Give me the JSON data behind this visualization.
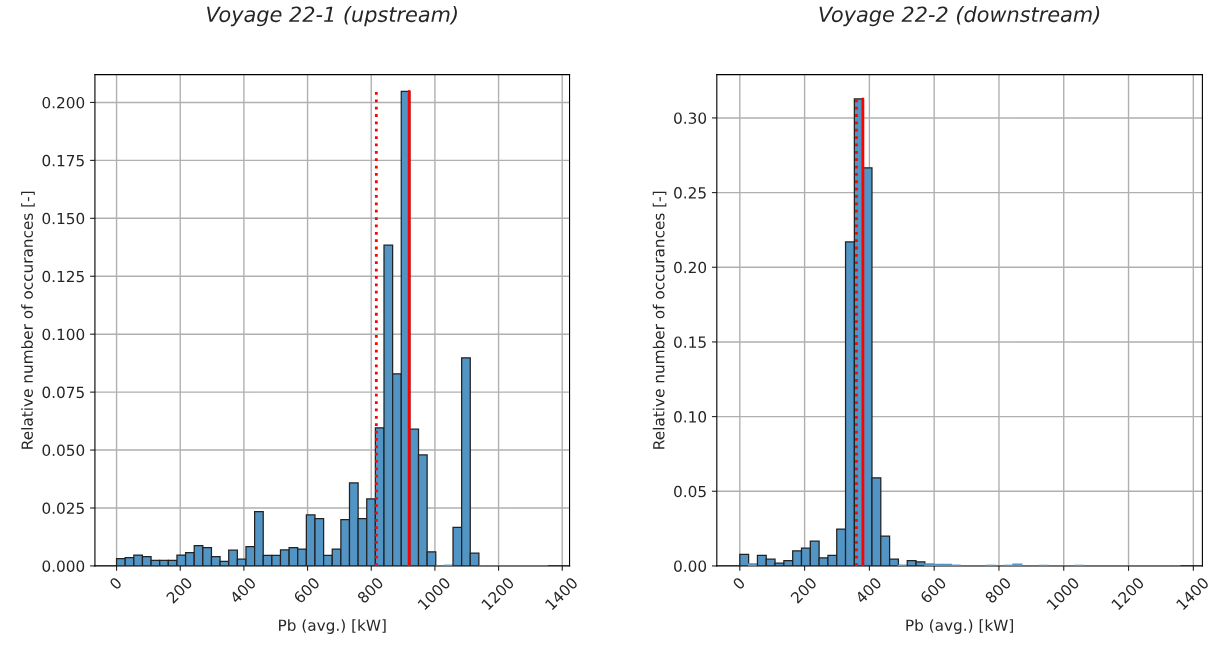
{
  "chart_data": [
    {
      "type": "histogram",
      "title": "Voyage 22-1 (upstream)",
      "xlabel": "Pb (avg.) [kW]",
      "ylabel": "Relative number of occurances [-]",
      "color": "#5294c4",
      "bins": [
        0,
        27.1,
        54.2,
        81.3,
        108.4,
        135.5,
        162.6,
        189.7,
        216.8,
        243.9,
        271,
        298.1,
        325.2,
        352.3,
        379.4,
        406.5,
        433.6,
        460.7,
        487.8,
        514.9,
        542,
        569.1,
        596.2,
        623.3,
        650.4,
        677.5,
        704.6,
        731.7,
        758.8,
        785.9,
        813,
        840.1,
        867.2,
        894.3,
        921.4,
        948.5,
        975.6,
        1002.7,
        1029.8,
        1056.9,
        1084,
        1111.1,
        1138.2,
        1165.3,
        1192.4,
        1219.5,
        1246.6,
        1273.7,
        1300.8,
        1327.9,
        1355
      ],
      "values": [
        0.0032,
        0.0036,
        0.0047,
        0.004,
        0.0024,
        0.0024,
        0.0024,
        0.0047,
        0.0057,
        0.0088,
        0.0079,
        0.004,
        0.002,
        0.0068,
        0.0029,
        0.0083,
        0.0234,
        0.0046,
        0.0046,
        0.0069,
        0.0079,
        0.0073,
        0.022,
        0.0204,
        0.0046,
        0.0073,
        0.02,
        0.0358,
        0.0204,
        0.0289,
        0.0596,
        0.1384,
        0.0829,
        0.2048,
        0.059,
        0.0479,
        0.0061,
        0,
        0.0003,
        0.0166,
        0.0898,
        0.0055,
        0,
        0,
        0,
        0,
        0,
        0,
        0,
        0
      ],
      "xlim": [
        -68,
        1423
      ],
      "ylim": [
        0,
        0.212
      ],
      "xticks": [
        0,
        200,
        400,
        600,
        800,
        1000,
        1200,
        1400
      ],
      "yticks": [
        {
          "value": 0,
          "label": "0.000"
        },
        {
          "value": 0.025,
          "label": "0.025"
        },
        {
          "value": 0.05,
          "label": "0.050"
        },
        {
          "value": 0.075,
          "label": "0.075"
        },
        {
          "value": 0.1,
          "label": "0.100"
        },
        {
          "value": 0.125,
          "label": "0.125"
        },
        {
          "value": 0.15,
          "label": "0.150"
        },
        {
          "value": 0.175,
          "label": "0.175"
        },
        {
          "value": 0.2,
          "label": "0.200"
        }
      ],
      "grid": true,
      "ref_lines": [
        {
          "axis": "x",
          "value": 816,
          "color": "#ff0000",
          "line_style": "dotted"
        },
        {
          "axis": "x",
          "value": 919,
          "color": "#ff0000",
          "line_style": "solid"
        }
      ]
    },
    {
      "type": "histogram",
      "title": "Voyage 22-2 (downstream)",
      "xlabel": "Pb (avg.) [kW]",
      "ylabel": "Relative number of occurances [-]",
      "color": "#5294c4",
      "bins": [
        0,
        27.2,
        54.4,
        81.6,
        108.8,
        136,
        163.2,
        190.4,
        217.6,
        244.8,
        272,
        299.2,
        326.4,
        353.6,
        380.8,
        408,
        435.2,
        462.4,
        489.6,
        516.8,
        544,
        571.2,
        598.4,
        625.6,
        652.8,
        680,
        707.2,
        734.4,
        761.6,
        788.8,
        816,
        843.2,
        870.4,
        897.6,
        924.8,
        952,
        979.2,
        1006.4,
        1033.6,
        1060.8,
        1088,
        1115.2,
        1142.4,
        1169.6,
        1196.8,
        1224,
        1251.2,
        1278.4,
        1305.6,
        1332.8,
        1360
      ],
      "values": [
        0.0078,
        0.0013,
        0.007,
        0.0045,
        0.0018,
        0.0036,
        0.0101,
        0.0119,
        0.0166,
        0.0054,
        0.007,
        0.0247,
        0.217,
        0.3127,
        0.2666,
        0.059,
        0.02,
        0.0046,
        0.0005,
        0.0036,
        0.0027,
        0.0013,
        0.0011,
        0.0011,
        0.0005,
        0,
        0,
        0,
        0.0004,
        0,
        0.0004,
        0.0012,
        0,
        0,
        0.0004,
        0,
        0,
        0,
        0.0004,
        0,
        0,
        0,
        0,
        0,
        0,
        0,
        0,
        0,
        0,
        0
      ],
      "xlim": [
        -71,
        1428
      ],
      "ylim": [
        0,
        0.329
      ],
      "xticks": [
        0,
        200,
        400,
        600,
        800,
        1000,
        1200,
        1400
      ],
      "yticks": [
        {
          "value": 0,
          "label": "0.00"
        },
        {
          "value": 0.05,
          "label": "0.05"
        },
        {
          "value": 0.1,
          "label": "0.10"
        },
        {
          "value": 0.15,
          "label": "0.15"
        },
        {
          "value": 0.2,
          "label": "0.20"
        },
        {
          "value": 0.25,
          "label": "0.25"
        },
        {
          "value": 0.3,
          "label": "0.30"
        }
      ],
      "grid": true,
      "ref_lines": [
        {
          "axis": "x",
          "value": 360,
          "color": "#ff0000",
          "line_style": "dotted"
        },
        {
          "axis": "x",
          "value": 380,
          "color": "#ff0000",
          "line_style": "solid"
        }
      ]
    }
  ]
}
